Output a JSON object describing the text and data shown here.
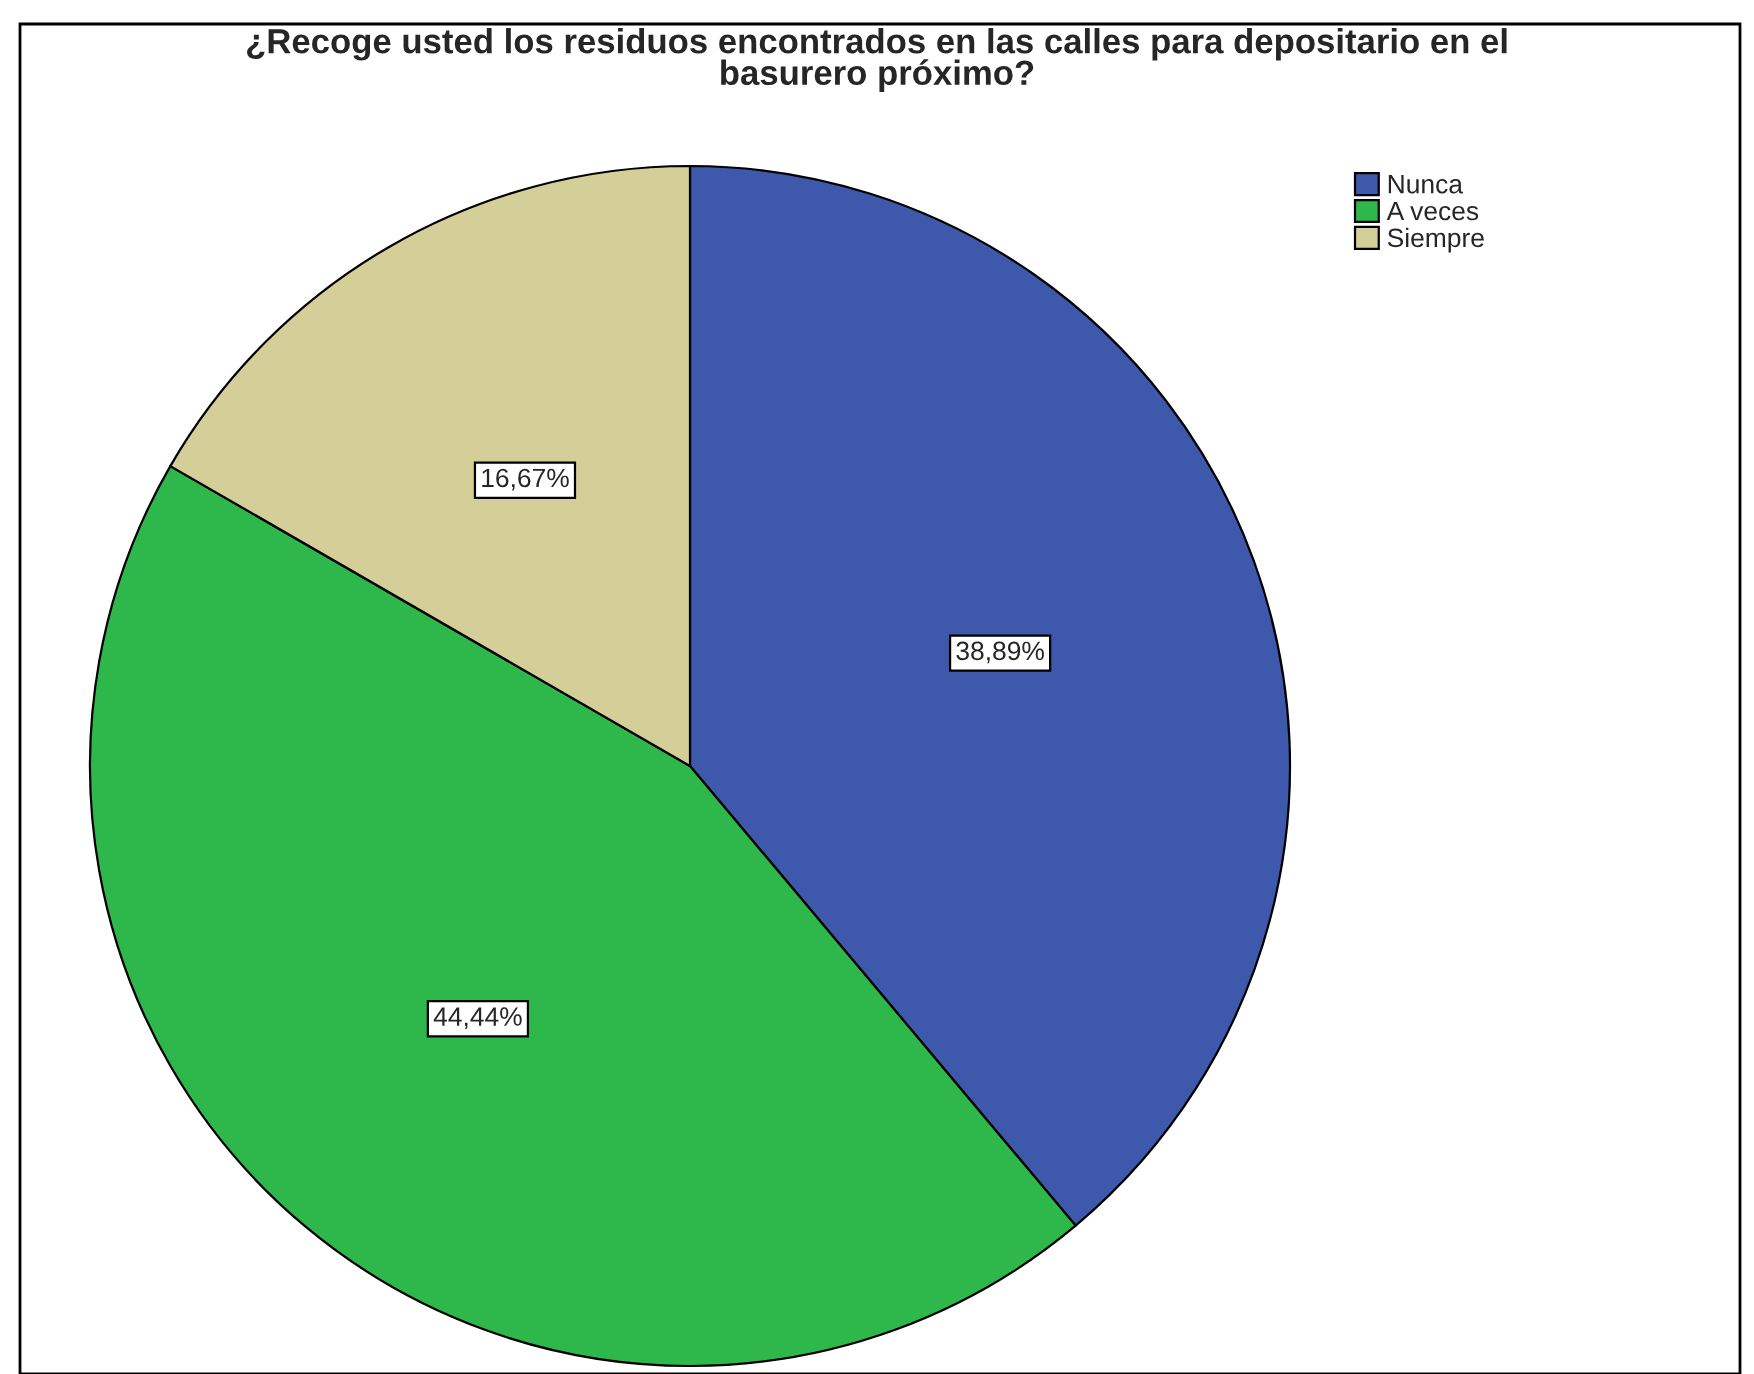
{
  "chart_data": {
    "type": "pie",
    "title": "¿Recoge usted los residuos encontrados en las calles para depositario en el\nbasurero próximo?",
    "categories": [
      "Nunca",
      "A veces",
      "Siempre"
    ],
    "values": [
      38.89,
      44.44,
      16.67
    ],
    "colors": [
      "#3e58ac",
      "#2eb84b",
      "#d4ce98"
    ],
    "value_labels": [
      "38,89%",
      "44,44%",
      "16,67%"
    ],
    "legend": "top right"
  }
}
